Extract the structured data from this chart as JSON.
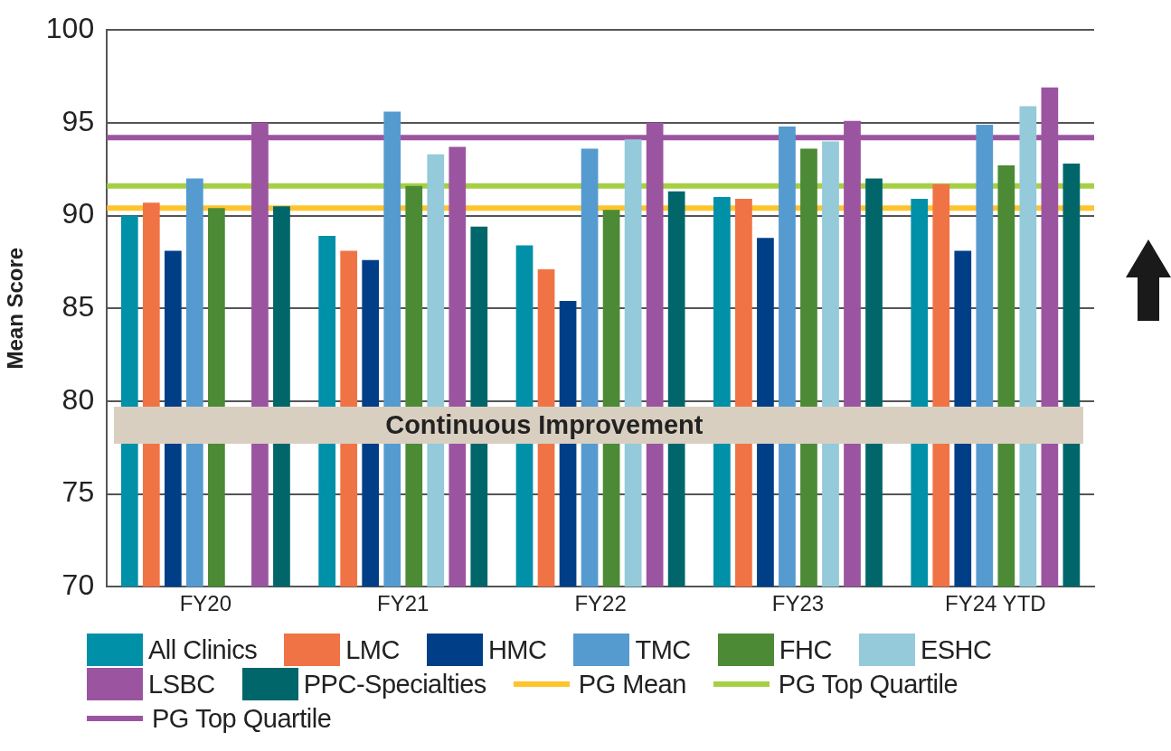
{
  "chart_data": {
    "type": "bar",
    "ylabel": "Mean Score",
    "categories": [
      "FY20",
      "FY21",
      "FY22",
      "FY23",
      "FY24 YTD"
    ],
    "series": [
      {
        "name": "All Clinics",
        "color": "#0090a8",
        "values": [
          90.0,
          88.9,
          88.4,
          91.0,
          90.9
        ]
      },
      {
        "name": "LMC",
        "color": "#f07345",
        "values": [
          90.7,
          88.1,
          87.1,
          90.9,
          91.7
        ]
      },
      {
        "name": "HMC",
        "color": "#003f87",
        "values": [
          88.1,
          87.6,
          85.4,
          88.8,
          88.1
        ]
      },
      {
        "name": "TMC",
        "color": "#559bcf",
        "values": [
          92.0,
          95.6,
          93.6,
          94.8,
          94.9
        ]
      },
      {
        "name": "FHC",
        "color": "#4c8a36",
        "values": [
          90.4,
          91.6,
          90.3,
          93.6,
          92.7
        ]
      },
      {
        "name": "ESHC",
        "color": "#94cad9",
        "values": [
          null,
          93.3,
          94.1,
          94.0,
          95.9
        ]
      },
      {
        "name": "LSBC",
        "color": "#9b55a0",
        "values": [
          95.0,
          93.7,
          95.0,
          95.1,
          96.9
        ]
      },
      {
        "name": "PPC-Specialties",
        "color": "#00666a",
        "values": [
          90.5,
          89.4,
          91.3,
          92.0,
          92.8
        ]
      }
    ],
    "ref_lines": [
      {
        "axis": "y",
        "value": 90.4,
        "label": "PG Mean",
        "color": "#fec42d"
      },
      {
        "axis": "y",
        "value": 91.6,
        "label": "PG Top Quartile",
        "color": "#a6cf45"
      },
      {
        "axis": "y",
        "value": 94.2,
        "label": "PG Top Quartile",
        "color": "#9b55a0"
      }
    ],
    "ylim": [
      70,
      100
    ],
    "yticks": [
      70,
      75,
      80,
      85,
      90,
      95,
      100
    ],
    "grid": "y",
    "legend": "bottom",
    "annotations": [
      "Continuous Improvement"
    ]
  }
}
